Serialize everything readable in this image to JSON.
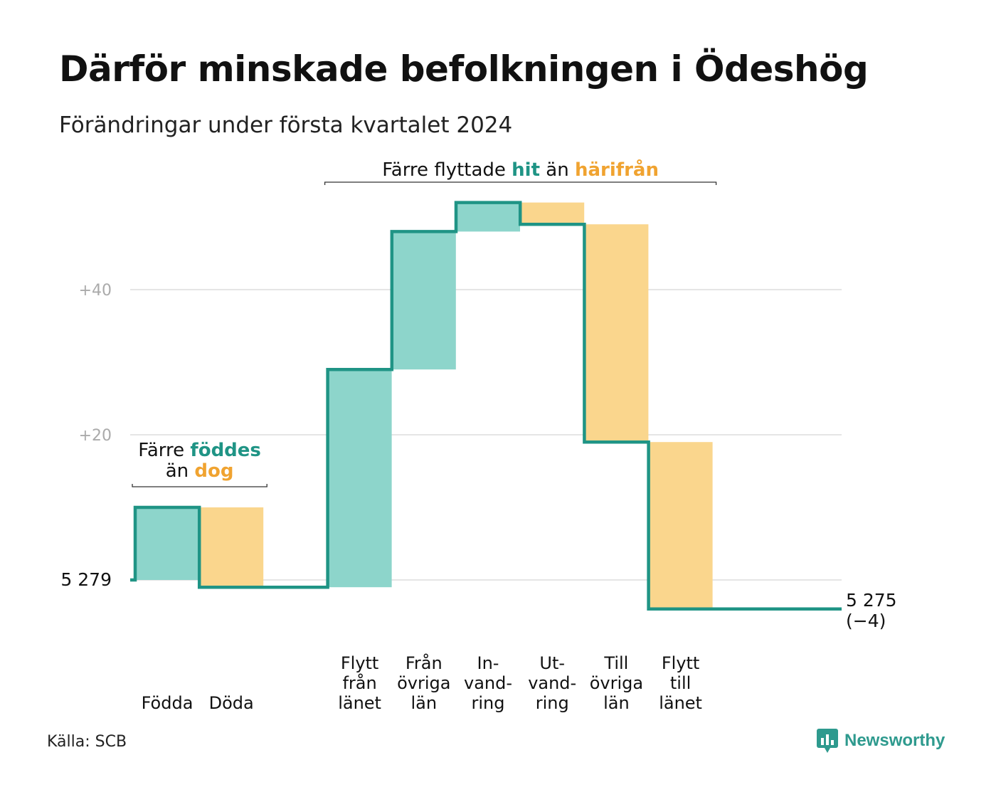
{
  "title": "Därför minskade befolkningen i Ödeshög",
  "subtitle": "Förändringar under första kvartalet 2024",
  "source": "Källa: SCB",
  "brand": "Newsworthy",
  "colors": {
    "increase_fill": "#8dd5cb",
    "decrease_fill": "#fad68d",
    "line": "#1f9485",
    "accent_teal": "#1f9485",
    "accent_orange": "#f0a330",
    "grid": "#e5e5e5",
    "axis_text": "#aaaaaa"
  },
  "annotations": {
    "births": {
      "prefix": "Färre",
      "teal_word": "föddes",
      "mid": "än",
      "orange_word": "dog"
    },
    "moves": {
      "prefix": "Färre flyttade",
      "teal_word": "hit",
      "mid": "än",
      "orange_word": "härifrån"
    }
  },
  "chart_data": {
    "type": "waterfall",
    "start_value": 5279,
    "start_label": "5  279",
    "end_value": 5275,
    "end_label": "5 275",
    "end_change": "(−4)",
    "ylim": [
      -5,
      52
    ],
    "yticks": [
      {
        "value": 20,
        "label": "+20"
      },
      {
        "value": 40,
        "label": "+40"
      }
    ],
    "grid": true,
    "steps": [
      {
        "label": [
          "Födda"
        ],
        "change": 10,
        "kind": "increase",
        "slot": 0
      },
      {
        "label": [
          "Döda"
        ],
        "change": -11,
        "kind": "decrease",
        "slot": 1
      },
      {
        "label": [
          "Flytt",
          "från",
          "länet"
        ],
        "change": 30,
        "kind": "increase",
        "slot": 3
      },
      {
        "label": [
          "Från",
          "övriga",
          "län"
        ],
        "change": 19,
        "kind": "increase",
        "slot": 4
      },
      {
        "label": [
          "In-",
          "vand-",
          "ring"
        ],
        "change": 4,
        "kind": "increase",
        "slot": 5
      },
      {
        "label": [
          "Ut-",
          "vand-",
          "ring"
        ],
        "change": -3,
        "kind": "decrease",
        "slot": 6
      },
      {
        "label": [
          "Till",
          "övriga",
          "län"
        ],
        "change": -30,
        "kind": "decrease",
        "slot": 7
      },
      {
        "label": [
          "Flytt",
          "till",
          "länet"
        ],
        "change": -23,
        "kind": "decrease",
        "slot": 8
      }
    ]
  }
}
